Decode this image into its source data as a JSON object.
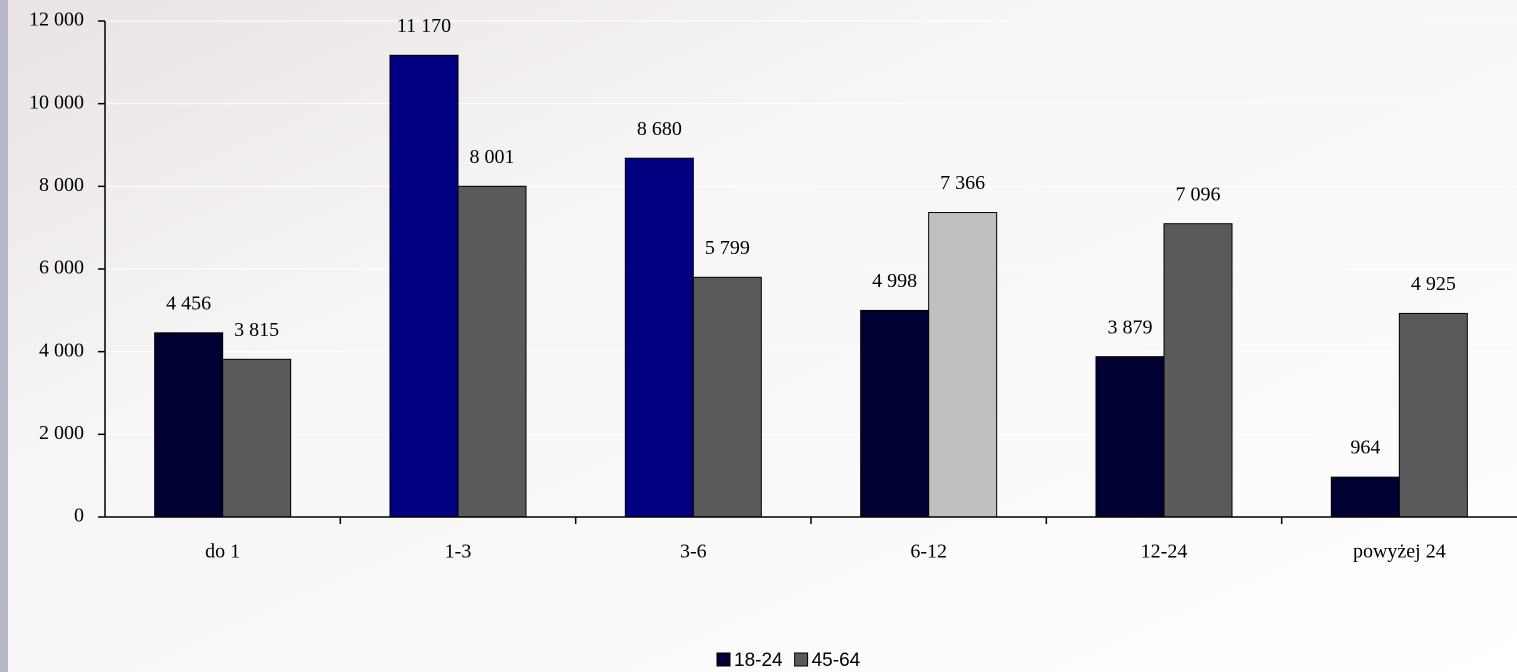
{
  "chart_data": {
    "type": "bar",
    "categories": [
      "do 1",
      "1-3",
      "3-6",
      "6-12",
      "12-24",
      "powyżej 24"
    ],
    "series": [
      {
        "name": "18-24",
        "color": "#000033",
        "colors": [
          "#000033",
          "#000080",
          "#000080",
          "#000033",
          "#000033",
          "#000033"
        ],
        "values": [
          4456,
          11170,
          8680,
          4998,
          3879,
          964
        ],
        "value_labels": [
          "4 456",
          "11 170",
          "8 680",
          "4 998",
          "3 879",
          "964"
        ]
      },
      {
        "name": "45-64",
        "color": "#5a5a5a",
        "colors": [
          "#5a5a5a",
          "#5a5a5a",
          "#5a5a5a",
          "#c0c0c0",
          "#5a5a5a",
          "#5a5a5a"
        ],
        "values": [
          3815,
          8001,
          5799,
          7366,
          7096,
          4925
        ],
        "value_labels": [
          "3 815",
          "8 001",
          "5 799",
          "7 366",
          "7 096",
          "4 925"
        ]
      }
    ],
    "ylim": [
      0,
      12000
    ],
    "yticks": [
      0,
      {
        "value": 2000,
        "label": "2 000"
      },
      {
        "value": 4000,
        "label": "4 000"
      },
      {
        "value": 6000,
        "label": "6 000"
      },
      {
        "value": 8000,
        "label": "8 000"
      },
      {
        "value": 10000,
        "label": "10 000"
      },
      {
        "value": 12000,
        "label": "12 000"
      }
    ],
    "grid": true,
    "legend": "bottom"
  }
}
